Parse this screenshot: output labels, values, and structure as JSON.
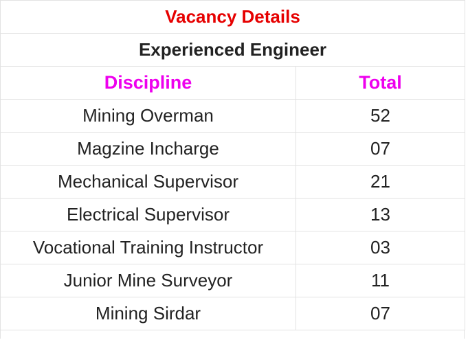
{
  "table": {
    "title": "Vacancy Details",
    "subtitle": "Experienced Engineer",
    "header": [
      "Discipline",
      "Total"
    ],
    "rows": [
      [
        "Mining Overman",
        "52"
      ],
      [
        "Magzine Incharge",
        "07"
      ],
      [
        "Mechanical Supervisor",
        "21"
      ],
      [
        "Electrical Supervisor",
        "13"
      ],
      [
        "Vocational Training Instructor",
        "03"
      ],
      [
        "Junior Mine Surveyor",
        "11"
      ],
      [
        "Mining Sirdar",
        "07"
      ]
    ]
  }
}
